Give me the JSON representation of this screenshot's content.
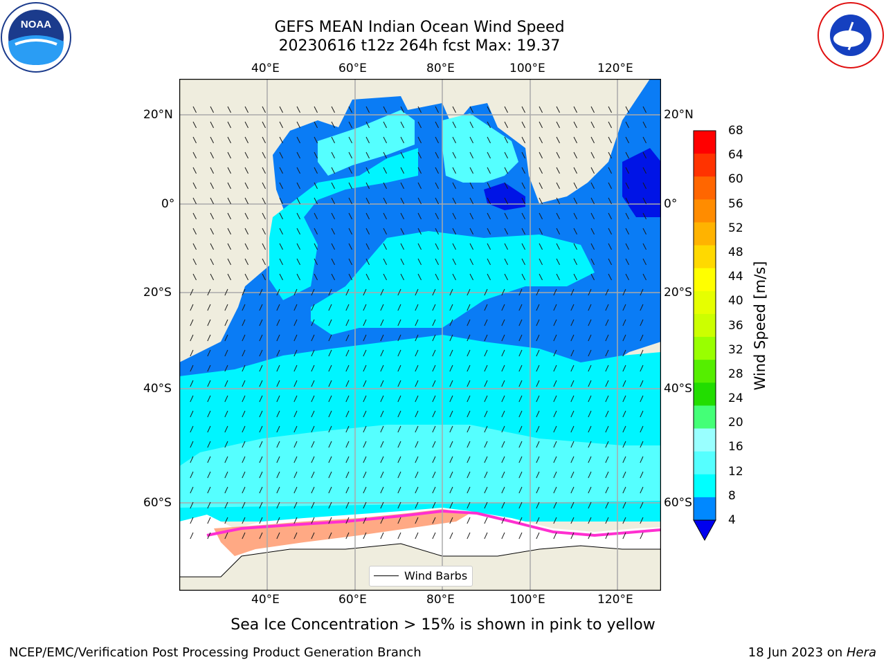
{
  "header": {
    "title_line1": "GEFS MEAN Indian Ocean Wind Speed",
    "title_line2": "20230616 t12z 264h fcst   Max: 19.37"
  },
  "logos": {
    "left": "NOAA",
    "right": "NATIONAL WEATHER SERVICE"
  },
  "map": {
    "lon_labels": [
      "40°E",
      "60°E",
      "80°E",
      "100°E",
      "120°E"
    ],
    "lat_labels": [
      "20°N",
      "0°",
      "20°S",
      "40°S",
      "60°S"
    ],
    "legend_label": "Wind Barbs",
    "land_color": "#efedde",
    "ocean_fast_color": "#00f5ff",
    "ocean_mid_color": "#0a7cf5",
    "ocean_slow_color": "#0014e6",
    "ice_color": "#ffffff"
  },
  "colorbar": {
    "label": "Wind Speed [m/s]",
    "ticks": [
      "68",
      "64",
      "60",
      "56",
      "52",
      "48",
      "44",
      "40",
      "36",
      "32",
      "28",
      "24",
      "20",
      "16",
      "12",
      "8",
      "4"
    ],
    "colors": [
      "#ff0000",
      "#ff3300",
      "#ff6600",
      "#ff8c00",
      "#ffb300",
      "#ffd900",
      "#ffff00",
      "#e6ff00",
      "#ccff00",
      "#99ff00",
      "#55ee00",
      "#22dd00",
      "#44ff77",
      "#99ffff",
      "#55ffff",
      "#00ffff",
      "#0088ff"
    ],
    "underflow_color": "#0000ee"
  },
  "footer": {
    "caption": "Sea Ice Concentration > 15% is shown in pink to yellow",
    "credit": "NCEP/EMC/Verification Post Processing Product Generation Branch",
    "date": "18 Jun 2023 on ",
    "machine": "Hera"
  }
}
